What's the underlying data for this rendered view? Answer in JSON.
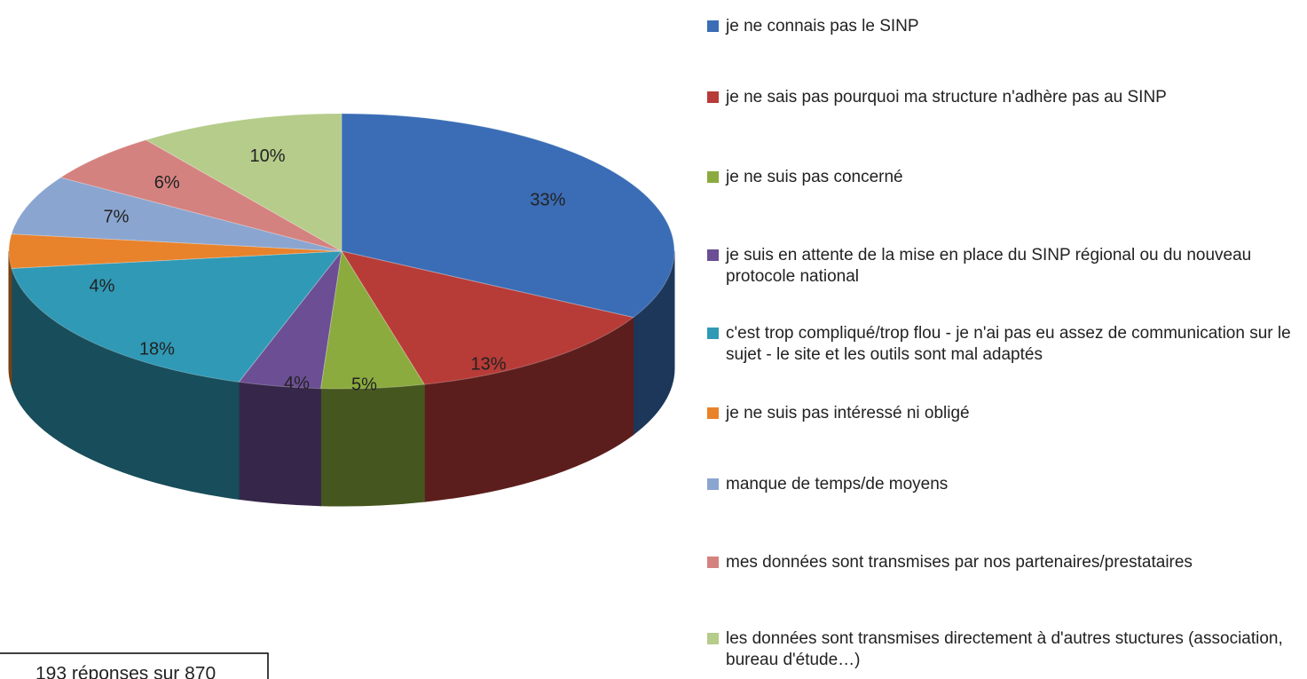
{
  "chart_data": {
    "type": "pie",
    "categories": [
      "je ne connais pas le SINP",
      "je ne sais pas pourquoi ma structure n'adhère pas au SINP",
      "je ne suis pas concerné",
      "je suis en attente de la mise en place du SINP régional ou du nouveau protocole national",
      "c'est trop compliqué/trop flou - je n'ai pas eu assez de communication sur le sujet - le site et les outils sont mal adaptés",
      "je ne suis pas intéressé ni obligé",
      "manque de temps/de moyens",
      "mes données sont transmises par nos partenaires/prestataires",
      "les données sont transmises directement à d'autres stuctures (association, bureau d'étude…)"
    ],
    "values": [
      33,
      13,
      5,
      4,
      18,
      4,
      7,
      6,
      10
    ],
    "value_labels": [
      "33%",
      "13%",
      "5%",
      "4%",
      "18%",
      "4%",
      "7%",
      "6%",
      "10%"
    ],
    "colors": [
      "#3a6db5",
      "#b73b37",
      "#8bab3e",
      "#6b4e93",
      "#3099b5",
      "#e8822b",
      "#8aa5cf",
      "#d4827f",
      "#b5cc8a"
    ],
    "annotation": "193 réponses sur 870",
    "legend": "right"
  }
}
